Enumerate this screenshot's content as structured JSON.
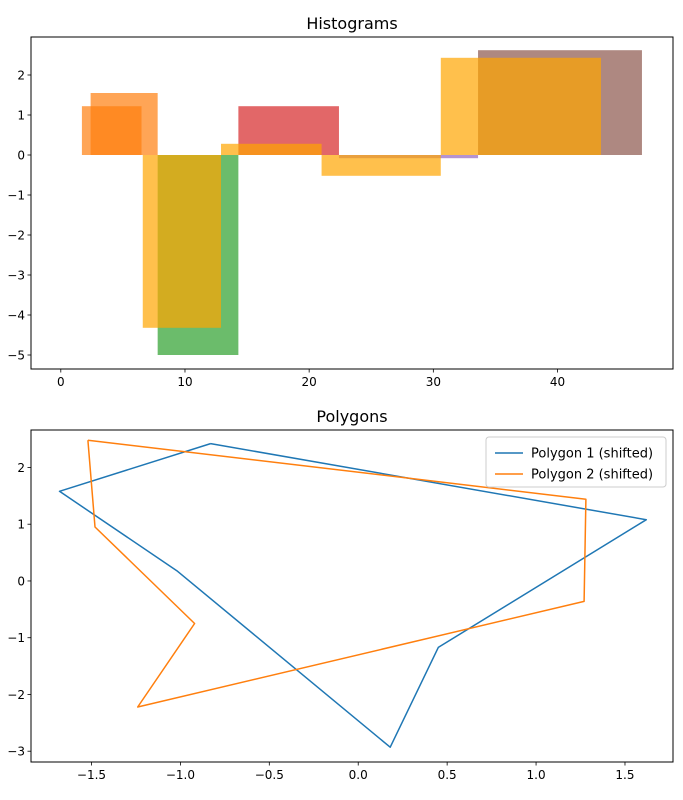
{
  "chart_data": [
    {
      "type": "bar",
      "title": "Histograms",
      "xlabel": "",
      "ylabel": "",
      "xlim": [
        -2.4,
        49.3
      ],
      "ylim": [
        -5.35,
        2.95
      ],
      "xticks": [
        0,
        10,
        20,
        30,
        40
      ],
      "yticks": [
        -5,
        -4,
        -3,
        -2,
        -1,
        0,
        1,
        2
      ],
      "grid": false,
      "bars": [
        {
          "x0": 1.7,
          "x1": 6.5,
          "value": 1.22,
          "color": "#ff7f0e",
          "alpha": 0.7
        },
        {
          "x0": 14.3,
          "x1": 22.4,
          "value": 1.22,
          "color": "#d62728",
          "alpha": 0.7
        },
        {
          "x0": 7.8,
          "x1": 14.3,
          "value": -5.0,
          "color": "#2ca02c",
          "alpha": 0.7
        },
        {
          "x0": 33.6,
          "x1": 46.8,
          "value": 2.62,
          "color": "#8c564b",
          "alpha": 0.7
        },
        {
          "x0": 22.4,
          "x1": 33.6,
          "value": -0.08,
          "color": "#9467bd",
          "alpha": 0.7
        },
        {
          "x0": 2.4,
          "x1": 7.8,
          "value": 1.55,
          "color": "#ff7f0e",
          "alpha": 0.7
        },
        {
          "x0": 6.6,
          "x1": 12.9,
          "value": -4.32,
          "color": "#ffa500",
          "alpha": 0.7
        },
        {
          "x0": 12.9,
          "x1": 21.0,
          "value": 0.28,
          "color": "#ffa500",
          "alpha": 0.7
        },
        {
          "x0": 21.0,
          "x1": 30.6,
          "value": -0.52,
          "color": "#ffa500",
          "alpha": 0.7
        },
        {
          "x0": 30.6,
          "x1": 43.5,
          "value": 2.43,
          "color": "#ffa500",
          "alpha": 0.7
        }
      ]
    },
    {
      "type": "line",
      "title": "Polygons",
      "xlabel": "",
      "ylabel": "",
      "xlim": [
        -1.84,
        1.77
      ],
      "ylim": [
        -3.19,
        2.66
      ],
      "xticks": [
        -1.5,
        -1.0,
        -0.5,
        0.0,
        0.5,
        1.0,
        1.5
      ],
      "yticks": [
        -3,
        -2,
        -1,
        0,
        1,
        2
      ],
      "grid": false,
      "legend_position": "top-right",
      "series": [
        {
          "name": "Polygon 1 (shifted)",
          "color": "#1f77b4",
          "points": [
            [
              -0.83,
              2.42
            ],
            [
              1.62,
              1.08
            ],
            [
              0.45,
              -1.17
            ],
            [
              0.18,
              -2.93
            ],
            [
              -1.02,
              0.18
            ],
            [
              -1.68,
              1.58
            ],
            [
              -0.83,
              2.42
            ]
          ]
        },
        {
          "name": "Polygon 2 (shifted)",
          "color": "#ff7f0e",
          "points": [
            [
              -1.52,
              2.48
            ],
            [
              1.28,
              1.44
            ],
            [
              1.27,
              -0.36
            ],
            [
              -1.24,
              -2.22
            ],
            [
              -0.92,
              -0.75
            ],
            [
              -1.48,
              0.95
            ],
            [
              -1.52,
              2.48
            ]
          ]
        }
      ]
    }
  ]
}
